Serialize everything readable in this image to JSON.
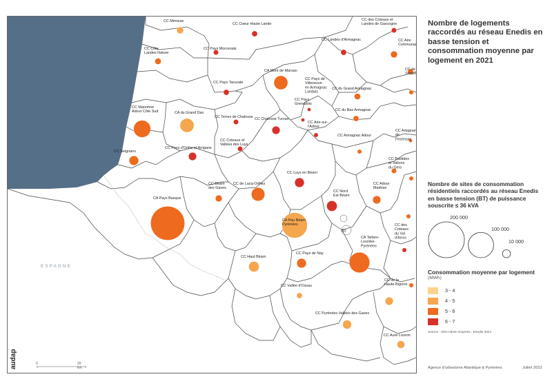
{
  "title": "Nombre de logements raccordés au réseau Enedis en basse tension et consommation moyenne par logement en 2021",
  "size_legend": {
    "title": "Nombre de sites de consommation résidentiels raccordés au réseau Enedis en basse tension (BT) de puissance souscrite ≤ 36 kVA",
    "values": [
      200000,
      100000,
      10000
    ],
    "labels": [
      "200 000",
      "100 000",
      "10 000"
    ]
  },
  "color_legend": {
    "title": "Consommation moyenne par logement",
    "unit": "(MWh)",
    "classes": [
      {
        "label": "3 - 4",
        "color": "#fbd38d"
      },
      {
        "label": "4 - 5",
        "color": "#f5a64e"
      },
      {
        "label": "5 - 6",
        "color": "#ed6a1f"
      },
      {
        "label": "6 - 7",
        "color": "#d8312a"
      }
    ]
  },
  "country_label": "ESPAGNE",
  "communes": [
    {
      "name": "CC Mimizan",
      "label_lines": [
        "CC Mimizan"
      ],
      "class": 1,
      "sites": 7000
    },
    {
      "name": "CC Coeur Haute Lande",
      "label_lines": [
        "CC Coeur Haute Lande"
      ],
      "class": 3,
      "sites": 5000
    },
    {
      "name": "CC des Coteaux et Landes de Gascogne",
      "label_lines": [
        "CC des Coteaux et",
        "Landes de Gascogne"
      ],
      "class": 3,
      "sites": 4000
    },
    {
      "name": "CC Landes d'Armagnac",
      "label_lines": [
        "CC Landes d'Armagnac"
      ],
      "class": 3,
      "sites": 5000
    },
    {
      "name": "CC Côte Landes Nature",
      "label_lines": [
        "CC Côte",
        "Landes Nature"
      ],
      "class": 2,
      "sites": 6000
    },
    {
      "name": "CC Pays Morcenais",
      "label_lines": [
        "CC Pays Morcenais"
      ],
      "class": 3,
      "sites": 4000
    },
    {
      "name": "CC Aire Communauté",
      "label_lines": [
        "CC Aire",
        "Communauté"
      ],
      "class": 2,
      "sites": 7000
    },
    {
      "name": "CC de la Ténarèze",
      "label_lines": [
        "CC de la",
        "Ténarèze"
      ],
      "class": 2,
      "sites": 5000
    },
    {
      "name": "CA Mont de Marsan",
      "label_lines": [
        "CA Mont de Marsan"
      ],
      "class": 2,
      "sites": 30000
    },
    {
      "name": "CC Pays Tarusate",
      "label_lines": [
        "CC Pays Tarusate"
      ],
      "class": 3,
      "sites": 5000
    },
    {
      "name": "CC Pays de Villeneuve en Armagnac Landais",
      "label_lines": [
        "CC Pays de",
        "Villeneuve",
        "en Armagnac",
        "Landais"
      ],
      "class": 3,
      "sites": 2000
    },
    {
      "name": "CC du Grand Armagnac",
      "label_lines": [
        "CC du Grand Armagnac"
      ],
      "class": 2,
      "sites": 6000
    },
    {
      "name": "CC Pays Grenadois",
      "label_lines": [
        "CC Pays",
        "Grenadois"
      ],
      "class": 3,
      "sites": 2000
    },
    {
      "name": "CC du Bas Armagnac",
      "label_lines": [
        "CC du Bas Armagnac"
      ],
      "class": 2,
      "sites": 5000
    },
    {
      "name": "CC Maremne Adour Côte Sud",
      "label_lines": [
        "CC Maremne",
        "Adour Côte Sud"
      ],
      "class": 2,
      "sites": 45000
    },
    {
      "name": "CA du Grand Dax",
      "label_lines": [
        "CA du Grand Dax"
      ],
      "class": 1,
      "sites": 30000
    },
    {
      "name": "CC Terres de Chalosse",
      "label_lines": [
        "CC Terres de Chalosse"
      ],
      "class": 3,
      "sites": 4000
    },
    {
      "name": "CC Chalosse Tursan",
      "label_lines": [
        "CC Chalosse Tursan"
      ],
      "class": 3,
      "sites": 10000
    },
    {
      "name": "CC Aire-sur-l'Adour",
      "label_lines": [
        "CC Aire-sur-",
        "l'Adour"
      ],
      "class": 3,
      "sites": 3000
    },
    {
      "name": "CC Armagnac Adour",
      "label_lines": [
        "CC Armagnac Adour"
      ],
      "class": 2,
      "sites": 3000
    },
    {
      "name": "CC Artagnan de Fezensac",
      "label_lines": [
        "CC Artagnan",
        "de",
        "Fezensac"
      ],
      "class": 2,
      "sites": 2000
    },
    {
      "name": "CC Seignanx",
      "label_lines": [
        "CC Seignanx"
      ],
      "class": 2,
      "sites": 14000
    },
    {
      "name": "CC du Pays d'Orthe et Arrigans",
      "label_lines": [
        "CC Pays d'Orthe et Arrigans"
      ],
      "class": 3,
      "sites": 10000
    },
    {
      "name": "CC Coteaux et Vallées des Luys",
      "label_lines": [
        "CC Coteaux et",
        "Vallées des Luys"
      ],
      "class": 3,
      "sites": 4000
    },
    {
      "name": "CC Bastides et Vallons du Gers",
      "label_lines": [
        "CC Bastides",
        "et Vallons",
        "du Gers"
      ],
      "class": 2,
      "sites": 4000
    },
    {
      "name": "CC Lacq-Orthez",
      "label_lines": [
        "CC de Lacq-Orthez"
      ],
      "class": 2,
      "sites": 28000
    },
    {
      "name": "CC Luys en Béarn",
      "label_lines": [
        "CC Luys en Béarn"
      ],
      "class": 3,
      "sites": 14000
    },
    {
      "name": "CC Béarn des Gaves",
      "label_lines": [
        "CC Béarn",
        "des Gaves"
      ],
      "class": 2,
      "sites": 7000
    },
    {
      "name": "CC Nord Est Béarn",
      "label_lines": [
        "CC Nord",
        "Est Béarn"
      ],
      "class": 3,
      "sites": 17000
    },
    {
      "name": "CC Adour Madiran",
      "label_lines": [
        "CC Adour",
        "Madiran"
      ],
      "class": 2,
      "sites": 10000
    },
    {
      "name": "CA Pays Basque",
      "label_lines": [
        "CA Pays Basque"
      ],
      "class": 2,
      "sites": 180000
    },
    {
      "name": "CA Pau Béarn Pyrénées",
      "label_lines": [
        "CA Pau Béarn",
        "Pyrénées"
      ],
      "class": 1,
      "sites": 100000
    },
    {
      "name": "CC des Coteaux du Val d'Arros",
      "label_lines": [
        "CC des",
        "Coteaux",
        "du Val",
        "d'Arros"
      ],
      "class": 3,
      "sites": 3000
    },
    {
      "name": "CA Tarbes-Lourdes-Pyrénées",
      "label_lines": [
        "CA Tarbes-",
        "Lourdes-",
        "Pyrénées"
      ],
      "class": 2,
      "sites": 65000
    },
    {
      "name": "CC Haut Béarn",
      "label_lines": [
        "CC Haut Béarn"
      ],
      "class": 1,
      "sites": 17000
    },
    {
      "name": "CC Pays de Nay",
      "label_lines": [
        "CC Pays de Nay"
      ],
      "class": 2,
      "sites": 14000
    },
    {
      "name": "CC Vallée d'Ossau",
      "label_lines": [
        "CC Vallée d'Ossau"
      ],
      "class": 1,
      "sites": 5000
    },
    {
      "name": "CC de la Haute-Bigorre",
      "label_lines": [
        "CC de la",
        "Haute-Bigorre"
      ],
      "class": 1,
      "sites": 10000
    },
    {
      "name": "CC Pyrénées Vallées des Gaves",
      "label_lines": [
        "CC Pyrénées Vallées des Gaves"
      ],
      "class": 1,
      "sites": 12000
    },
    {
      "name": "CC Aure Louron",
      "label_lines": [
        "CC Aure Louron"
      ],
      "class": 1,
      "sites": 9000
    }
  ],
  "other_circles": [
    {
      "class": 2,
      "sites": 3000
    },
    {
      "class": 2,
      "sites": 3000
    },
    {
      "class": 2,
      "sites": 3000
    },
    {
      "class": 2,
      "sites": 3000
    }
  ],
  "footnote_marker": "(1)",
  "source": "Source : IGN-Admin Express ; Enedis 2021",
  "agency": "Agence d'urbanisme Atlantique & Pyrénées",
  "date": "Juillet 2023",
  "logo_text": "audap",
  "scale": {
    "start": "0",
    "end": "20 km"
  }
}
